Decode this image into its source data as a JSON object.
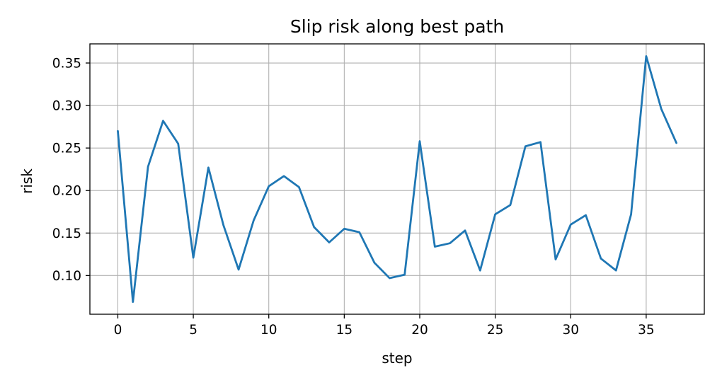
{
  "chart_data": {
    "type": "line",
    "title": "Slip risk along best path",
    "xlabel": "step",
    "ylabel": "risk",
    "xlim": [
      -1.85,
      38.85
    ],
    "ylim": [
      0.0545,
      0.3725
    ],
    "xticks": [
      0,
      5,
      10,
      15,
      20,
      25,
      30,
      35
    ],
    "yticks": [
      0.1,
      0.15,
      0.2,
      0.25,
      0.3,
      0.35
    ],
    "xtick_labels": [
      "0",
      "5",
      "10",
      "15",
      "20",
      "25",
      "30",
      "35"
    ],
    "ytick_labels": [
      "0.10",
      "0.15",
      "0.20",
      "0.25",
      "0.30",
      "0.35"
    ],
    "grid": true,
    "line_color": "#1f77b4",
    "series": [
      {
        "x": [
          0,
          1,
          2,
          3,
          4,
          5,
          6,
          7,
          8,
          9,
          10,
          11,
          12,
          13,
          14,
          15,
          16,
          17,
          18,
          19,
          20,
          21,
          22,
          23,
          24,
          25,
          26,
          27,
          28,
          29,
          30,
          31,
          32,
          33,
          34,
          35,
          36,
          37
        ],
        "values": [
          0.27,
          0.069,
          0.228,
          0.282,
          0.255,
          0.121,
          0.227,
          0.159,
          0.107,
          0.165,
          0.205,
          0.217,
          0.204,
          0.157,
          0.139,
          0.155,
          0.151,
          0.115,
          0.097,
          0.101,
          0.258,
          0.134,
          0.138,
          0.153,
          0.106,
          0.172,
          0.183,
          0.252,
          0.257,
          0.119,
          0.16,
          0.171,
          0.12,
          0.106,
          0.172,
          0.358,
          0.296,
          0.256
        ]
      }
    ]
  }
}
